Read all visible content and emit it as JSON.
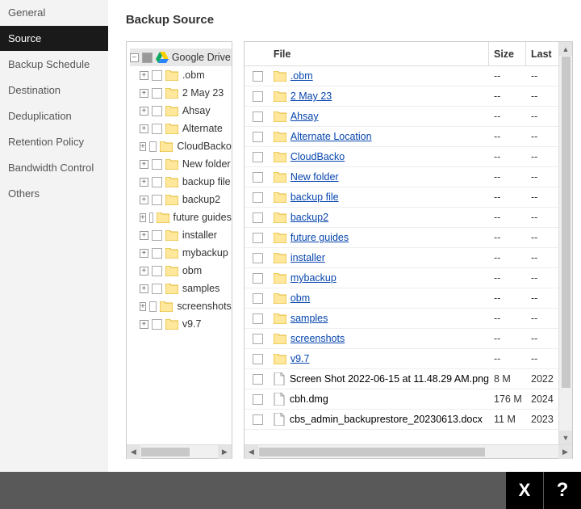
{
  "sidebar": {
    "items": [
      {
        "label": "General",
        "active": false
      },
      {
        "label": "Source",
        "active": true
      },
      {
        "label": "Backup Schedule",
        "active": false
      },
      {
        "label": "Destination",
        "active": false
      },
      {
        "label": "Deduplication",
        "active": false
      },
      {
        "label": "Retention Policy",
        "active": false
      },
      {
        "label": "Bandwidth Control",
        "active": false
      },
      {
        "label": "Others",
        "active": false
      }
    ]
  },
  "page": {
    "title": "Backup Source"
  },
  "tree": {
    "root": {
      "label": "Google Drive",
      "expanded": true,
      "checked": "partial"
    },
    "children": [
      {
        "label": ".obm"
      },
      {
        "label": "2 May 23"
      },
      {
        "label": "Ahsay"
      },
      {
        "label": "Alternate"
      },
      {
        "label": "CloudBacko"
      },
      {
        "label": "New folder"
      },
      {
        "label": "backup file"
      },
      {
        "label": "backup2"
      },
      {
        "label": "future guides"
      },
      {
        "label": "installer"
      },
      {
        "label": "mybackup"
      },
      {
        "label": "obm"
      },
      {
        "label": "samples"
      },
      {
        "label": "screenshots"
      },
      {
        "label": "v9.7"
      }
    ]
  },
  "table": {
    "columns": {
      "file": "File",
      "size": "Size",
      "last": "Last"
    },
    "rows": [
      {
        "type": "folder",
        "name": ".obm",
        "size": "--",
        "last": "--"
      },
      {
        "type": "folder",
        "name": "2 May 23",
        "size": "--",
        "last": "--"
      },
      {
        "type": "folder",
        "name": "Ahsay",
        "size": "--",
        "last": "--"
      },
      {
        "type": "folder",
        "name": "Alternate Location",
        "size": "--",
        "last": "--"
      },
      {
        "type": "folder",
        "name": "CloudBacko",
        "size": "--",
        "last": "--"
      },
      {
        "type": "folder",
        "name": "New folder",
        "size": "--",
        "last": "--"
      },
      {
        "type": "folder",
        "name": "backup file",
        "size": "--",
        "last": "--"
      },
      {
        "type": "folder",
        "name": "backup2",
        "size": "--",
        "last": "--"
      },
      {
        "type": "folder",
        "name": "future guides",
        "size": "--",
        "last": "--"
      },
      {
        "type": "folder",
        "name": "installer",
        "size": "--",
        "last": "--"
      },
      {
        "type": "folder",
        "name": "mybackup",
        "size": "--",
        "last": "--"
      },
      {
        "type": "folder",
        "name": "obm",
        "size": "--",
        "last": "--"
      },
      {
        "type": "folder",
        "name": "samples",
        "size": "--",
        "last": "--"
      },
      {
        "type": "folder",
        "name": "screenshots",
        "size": "--",
        "last": "--"
      },
      {
        "type": "folder",
        "name": "v9.7",
        "size": "--",
        "last": "--"
      },
      {
        "type": "file",
        "name": "Screen Shot 2022-06-15 at 11.48.29 AM.png",
        "size": "8 M",
        "last": "2022"
      },
      {
        "type": "file",
        "name": "cbh.dmg",
        "size": "176 M",
        "last": "2024"
      },
      {
        "type": "file",
        "name": "cbs_admin_backuprestore_20230613.docx",
        "size": "11 M",
        "last": "2023"
      }
    ]
  },
  "bottom": {
    "close": "X",
    "help": "?"
  },
  "colors": {
    "sidebar_bg": "#f3f3f3",
    "active_bg": "#1a1a1a",
    "link": "#0645ad",
    "folder_fill": "#ffe79b",
    "folder_stroke": "#d9a400",
    "bottom_bar": "#595959"
  },
  "scroll": {
    "tree_h_thumb_width": 60,
    "table_h_thumb_width": 280,
    "table_v_thumb_height": 410
  }
}
